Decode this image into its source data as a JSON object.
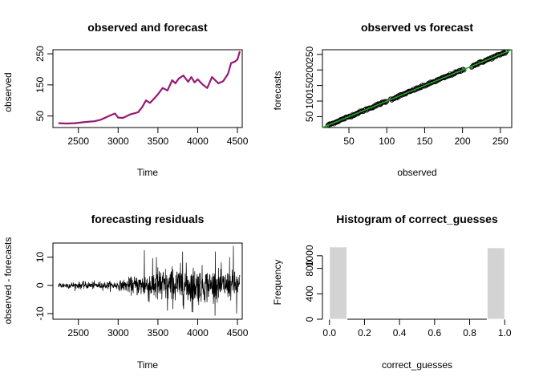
{
  "chart_data": [
    {
      "type": "line",
      "title": "observed and forecast",
      "xlabel": "Time",
      "ylabel": "observed",
      "xlim": [
        2180,
        4560
      ],
      "ylim": [
        13,
        263
      ],
      "x_ticks": [
        2500,
        3000,
        3500,
        4000,
        4500
      ],
      "y_ticks": [
        50,
        150,
        250
      ],
      "grid": false,
      "series": [
        {
          "color": "#d0004f",
          "x": [
            2250,
            2350,
            2450,
            2600,
            2700,
            2780,
            2850,
            2900,
            2960,
            3000,
            3060,
            3150,
            3250,
            3300,
            3350,
            3400,
            3460,
            3500,
            3560,
            3620,
            3680,
            3720,
            3760,
            3820,
            3880,
            3920,
            3960,
            4000,
            4060,
            4120,
            4180,
            4220,
            4260,
            4320,
            4380,
            4420,
            4470,
            4500,
            4530
          ],
          "y": [
            27,
            26,
            27,
            31,
            33,
            38,
            46,
            52,
            58,
            45,
            44,
            55,
            62,
            78,
            100,
            92,
            108,
            120,
            140,
            132,
            165,
            155,
            170,
            180,
            160,
            175,
            158,
            168,
            152,
            140,
            175,
            165,
            155,
            162,
            185,
            220,
            225,
            232,
            258
          ]
        },
        {
          "color": "#6a2c91",
          "x": [
            2250,
            2350,
            2450,
            2600,
            2700,
            2780,
            2850,
            2900,
            2960,
            3000,
            3060,
            3150,
            3250,
            3300,
            3350,
            3400,
            3460,
            3500,
            3560,
            3620,
            3680,
            3720,
            3760,
            3820,
            3880,
            3920,
            3960,
            4000,
            4060,
            4120,
            4180,
            4220,
            4260,
            4320,
            4380,
            4420,
            4470,
            4500,
            4530
          ],
          "y": [
            27,
            26,
            27,
            31,
            33,
            38,
            46,
            52,
            57,
            45,
            44,
            55,
            62,
            77,
            99,
            92,
            107,
            120,
            139,
            132,
            164,
            155,
            169,
            179,
            160,
            174,
            158,
            167,
            152,
            141,
            174,
            165,
            155,
            162,
            184,
            219,
            224,
            231,
            256
          ]
        }
      ]
    },
    {
      "type": "scatter",
      "title": "observed vs forecast",
      "xlabel": "observed",
      "ylabel": "forecasts",
      "xlim": [
        15,
        265
      ],
      "ylim": [
        15,
        265
      ],
      "x_ticks": [
        50,
        100,
        150,
        200,
        250
      ],
      "y_ticks": [
        50,
        100,
        150,
        200,
        250
      ],
      "grid": false,
      "reference_line_color": "#22aa22",
      "point_color": "#000000",
      "segments": [
        {
          "from": 22,
          "to": 100
        },
        {
          "from": 105,
          "to": 202
        },
        {
          "from": 212,
          "to": 258
        }
      ]
    },
    {
      "type": "line",
      "title": "forecasting residuals",
      "xlabel": "Time",
      "ylabel": "observed - forecasts",
      "xlim": [
        2180,
        4560
      ],
      "ylim": [
        -12,
        15
      ],
      "x_ticks": [
        2500,
        3000,
        3500,
        4000,
        4500
      ],
      "y_ticks": [
        -10,
        0,
        10
      ],
      "grid": false,
      "series": [
        {
          "color": "#000000",
          "x_range": [
            2250,
            4530
          ],
          "amplitude_profile": [
            [
              2250,
              1.2
            ],
            [
              3000,
              1.6
            ],
            [
              3300,
              4.5
            ],
            [
              3400,
              6.5
            ],
            [
              3900,
              7.5
            ],
            [
              4200,
              6
            ],
            [
              4530,
              5
            ]
          ],
          "spikes": [
            [
              3330,
              12.5
            ],
            [
              3480,
              10
            ],
            [
              3810,
              12
            ],
            [
              3940,
              -9.5
            ],
            [
              4220,
              12
            ],
            [
              4400,
              10
            ],
            [
              4450,
              14
            ],
            [
              4490,
              -10
            ],
            [
              3550,
              -5
            ],
            [
              3620,
              -9
            ]
          ]
        }
      ]
    },
    {
      "type": "bar",
      "title": "Histogram of correct_guesses",
      "xlabel": "correct_guesses",
      "ylabel": "Frequency",
      "xlim": [
        -0.04,
        1.04
      ],
      "ylim": [
        0,
        1200
      ],
      "x_ticks": [
        "0.0",
        "0.2",
        "0.4",
        "0.6",
        "0.8",
        "1.0"
      ],
      "y_ticks": [
        0,
        400,
        800,
        1000
      ],
      "bins": [
        {
          "from": 0.0,
          "to": 0.1,
          "count": 1140
        },
        {
          "from": 0.1,
          "to": 0.2,
          "count": 0
        },
        {
          "from": 0.2,
          "to": 0.3,
          "count": 0
        },
        {
          "from": 0.3,
          "to": 0.4,
          "count": 0
        },
        {
          "from": 0.4,
          "to": 0.5,
          "count": 0
        },
        {
          "from": 0.5,
          "to": 0.6,
          "count": 0
        },
        {
          "from": 0.6,
          "to": 0.7,
          "count": 0
        },
        {
          "from": 0.7,
          "to": 0.8,
          "count": 0
        },
        {
          "from": 0.8,
          "to": 0.9,
          "count": 0
        },
        {
          "from": 0.9,
          "to": 1.0,
          "count": 1125
        }
      ],
      "bar_color": "#d3d3d3"
    }
  ]
}
